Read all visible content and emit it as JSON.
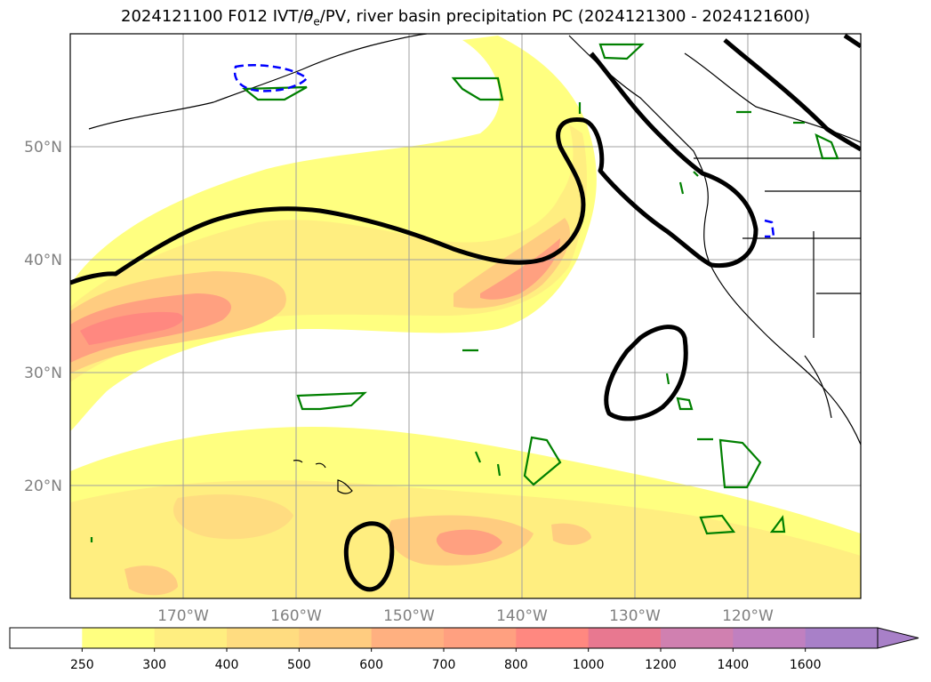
{
  "title": {
    "prefix": "2024121100 F012 IVT/",
    "theta": "θ",
    "theta_sub": "e",
    "suffix": "/PV, river basin precipitation PC (2024121300 - 2024121600)"
  },
  "map": {
    "lon_range": [
      -180,
      -110
    ],
    "lat_range": [
      10,
      60
    ],
    "lat_ticks": [
      {
        "value": 50,
        "label": "50°N"
      },
      {
        "value": 40,
        "label": "40°N"
      },
      {
        "value": 30,
        "label": "30°N"
      },
      {
        "value": 20,
        "label": "20°N"
      }
    ],
    "lon_ticks": [
      {
        "value": -170,
        "label": "170°W"
      },
      {
        "value": -160,
        "label": "160°W"
      },
      {
        "value": -150,
        "label": "150°W"
      },
      {
        "value": -140,
        "label": "140°W"
      },
      {
        "value": -130,
        "label": "130°W"
      },
      {
        "value": -120,
        "label": "120°W"
      }
    ],
    "grid": true
  },
  "colorbar": {
    "levels": [
      "250",
      "300",
      "400",
      "500",
      "600",
      "700",
      "800",
      "1000",
      "1200",
      "1400",
      "1600"
    ],
    "colors": [
      "#ffffff",
      "#ffff80",
      "#ffee80",
      "#ffdc80",
      "#ffcc80",
      "#ffb080",
      "#ffa080",
      "#ff8880",
      "#e87890",
      "#d080b0",
      "#c080c0",
      "#a880c8"
    ],
    "extend": "max"
  },
  "colors": {
    "pv_contour": "#000000",
    "precip_pos": "#008000",
    "precip_neg": "#0000ff"
  }
}
